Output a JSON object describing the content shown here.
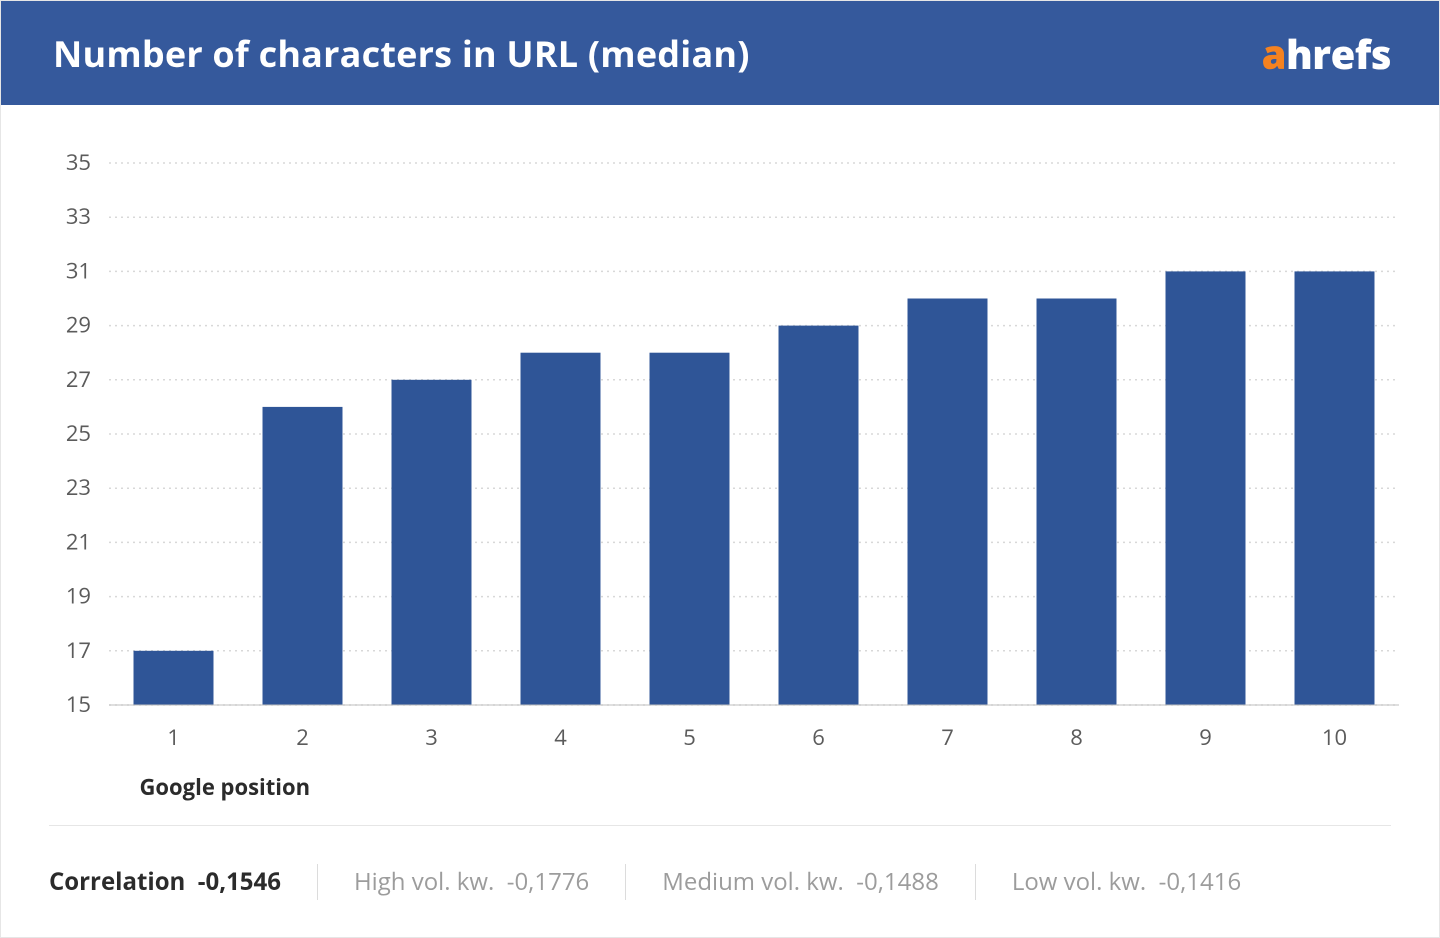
{
  "header": {
    "title": "Number of characters in URL (median)",
    "bg_color": "#35599c",
    "title_color": "#ffffff",
    "title_fontsize": 36
  },
  "logo": {
    "prefix": "a",
    "rest": "hrefs",
    "prefix_color": "#f58220",
    "rest_color": "#ffffff",
    "fontsize": 40
  },
  "chart": {
    "type": "bar",
    "categories": [
      "1",
      "2",
      "3",
      "4",
      "5",
      "6",
      "7",
      "8",
      "9",
      "10"
    ],
    "values": [
      17,
      26,
      27,
      28,
      28,
      29,
      30,
      30,
      31,
      31
    ],
    "bar_color": "#2f5597",
    "background_color": "#ffffff",
    "grid_color": "#d8d8d8",
    "axis_color": "#bfbfbf",
    "ymin": 15,
    "ymax": 35,
    "ytick_step": 2,
    "yticks": [
      15,
      17,
      19,
      21,
      23,
      25,
      27,
      29,
      31,
      33,
      35
    ],
    "xlabel": "Google position",
    "label_fontsize": 22,
    "tick_fontsize": 22,
    "tick_color": "#5b5b5b",
    "bar_width_ratio": 0.62
  },
  "footer": {
    "correlation_label": "Correlation",
    "correlation_value": "-0,1546",
    "high_vol_label": "High vol. kw.",
    "high_vol_value": "-0,1776",
    "medium_vol_label": "Medium vol. kw.",
    "medium_vol_value": "-0,1488",
    "low_vol_label": "Low vol. kw.",
    "low_vol_value": "-0,1416",
    "label_color": "#2b2b2b",
    "muted_color": "#9c9c9c",
    "fontsize": 24,
    "divider_color": "#dcdcdc"
  }
}
